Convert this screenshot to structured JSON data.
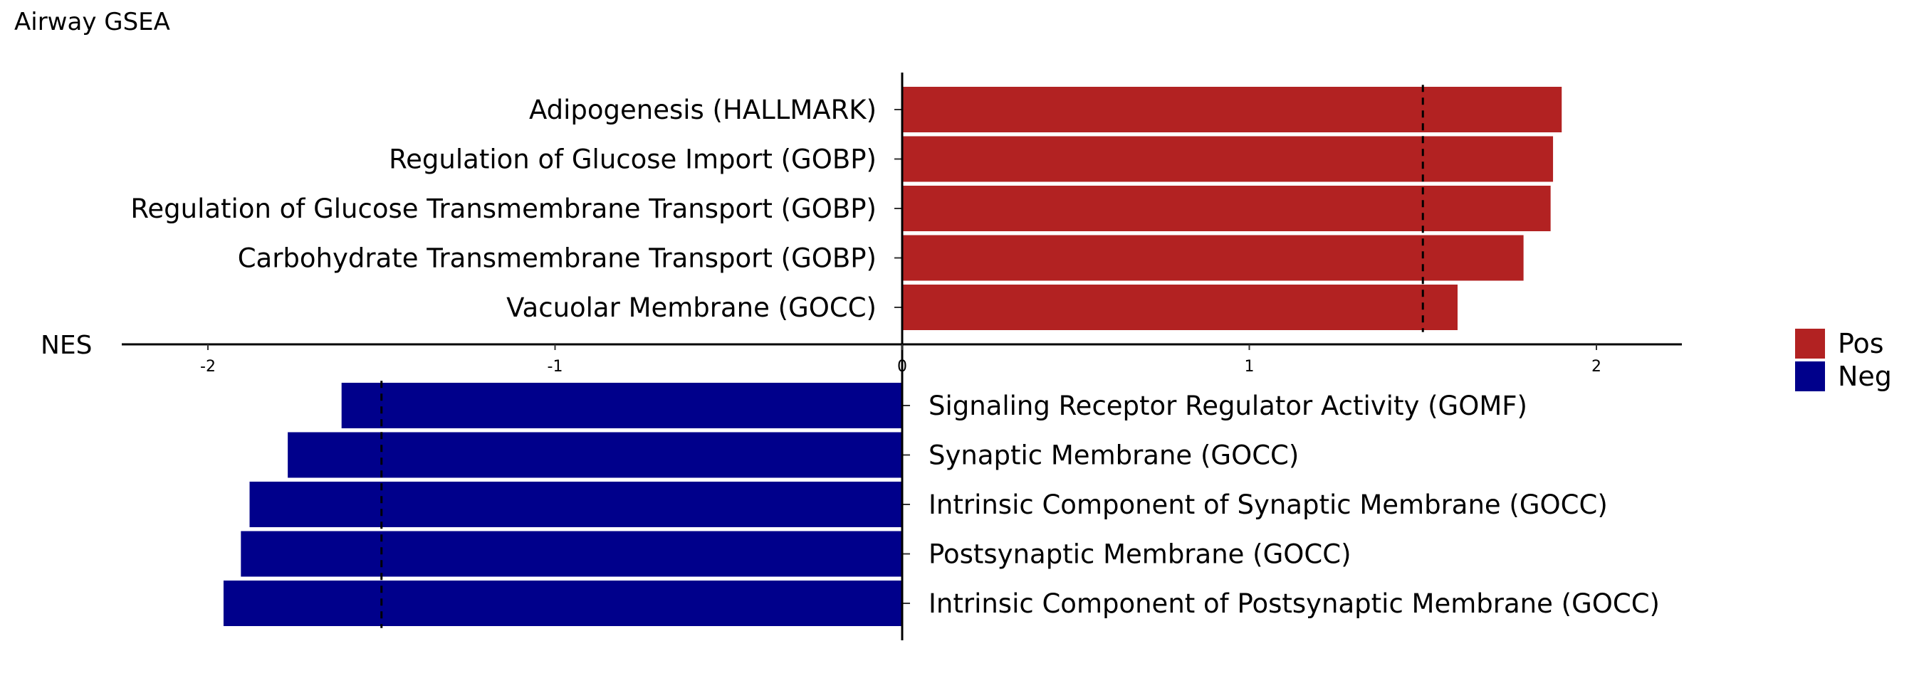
{
  "chart_data": {
    "type": "bar",
    "orientation": "horizontal",
    "title": "Airway GSEA",
    "xlabel": "NES",
    "xlim": [
      -2.25,
      2.25
    ],
    "x_ticks": [
      -2,
      -1,
      0,
      1,
      2
    ],
    "threshold": 1.5,
    "series": [
      {
        "name": "Pos",
        "color": "#B22222",
        "categories": [
          "Adipogenesis (HALLMARK)",
          "Regulation of Glucose Import (GOBP)",
          "Regulation of Glucose Transmembrane Transport (GOBP)",
          "Carbohydrate Transmembrane Transport (GOBP)",
          "Vacuolar Membrane (GOCC)"
        ],
        "values": [
          1.9,
          1.875,
          1.868,
          1.79,
          1.6
        ]
      },
      {
        "name": "Neg",
        "color": "#00008B",
        "categories": [
          "Signaling Receptor Regulator Activity (GOMF)",
          "Synaptic Membrane (GOCC)",
          "Intrinsic Component of Synaptic Membrane (GOCC)",
          "Postsynaptic Membrane (GOCC)",
          "Intrinsic Component of Postsynaptic Membrane (GOCC)"
        ],
        "values": [
          -1.615,
          -1.77,
          -1.88,
          -1.905,
          -1.955
        ]
      }
    ],
    "grid": false,
    "legend_position": "right"
  }
}
